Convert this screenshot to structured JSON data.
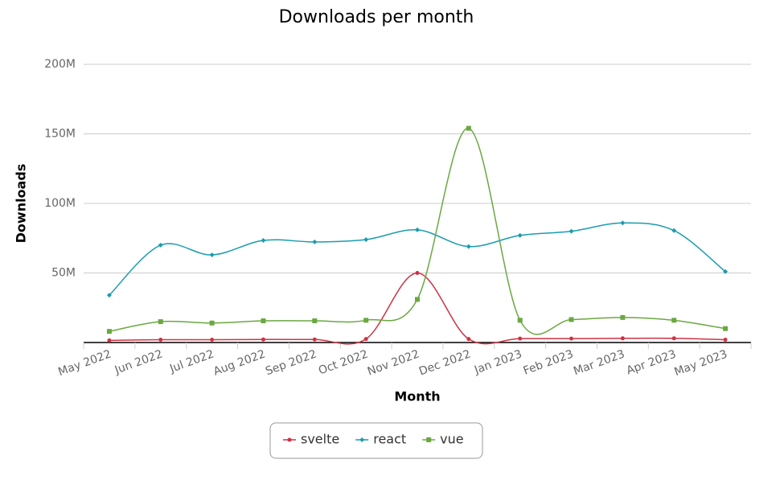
{
  "chart_data": {
    "type": "line",
    "title": "Downloads per month",
    "x_label": "Month",
    "y_label": "Downloads",
    "categories": [
      "May 2022",
      "Jun 2022",
      "Jul 2022",
      "Aug 2022",
      "Sep 2022",
      "Oct 2022",
      "Nov 2022",
      "Dec 2022",
      "Jan 2023",
      "Feb 2023",
      "Mar 2023",
      "Apr 2023",
      "May 2023"
    ],
    "series": [
      {
        "name": "svelte",
        "color": "#cc3344",
        "marker": "circle",
        "values": [
          1500000,
          2000000,
          2000000,
          2200000,
          2200000,
          2500000,
          50000000,
          2500000,
          2800000,
          2800000,
          3000000,
          3000000,
          2000000
        ]
      },
      {
        "name": "react",
        "color": "#1a9cb0",
        "marker": "diamond",
        "values": [
          34000000,
          70000000,
          63000000,
          73400000,
          72300000,
          74000000,
          81000000,
          69000000,
          77000000,
          80000000,
          86000000,
          80500000,
          51000000
        ]
      },
      {
        "name": "vue",
        "color": "#6aa840",
        "marker": "square",
        "values": [
          8000000,
          15000000,
          14000000,
          15600000,
          15600000,
          16000000,
          31000000,
          154000000,
          16000000,
          16500000,
          18000000,
          16000000,
          10000000
        ]
      }
    ],
    "ylim": [
      0,
      200000000
    ],
    "yticks": [
      {
        "value": 50000000,
        "label": "50M"
      },
      {
        "value": 100000000,
        "label": "100M"
      },
      {
        "value": 150000000,
        "label": "150M"
      },
      {
        "value": 200000000,
        "label": "200M"
      }
    ],
    "grid": true,
    "legend": "bottom"
  }
}
